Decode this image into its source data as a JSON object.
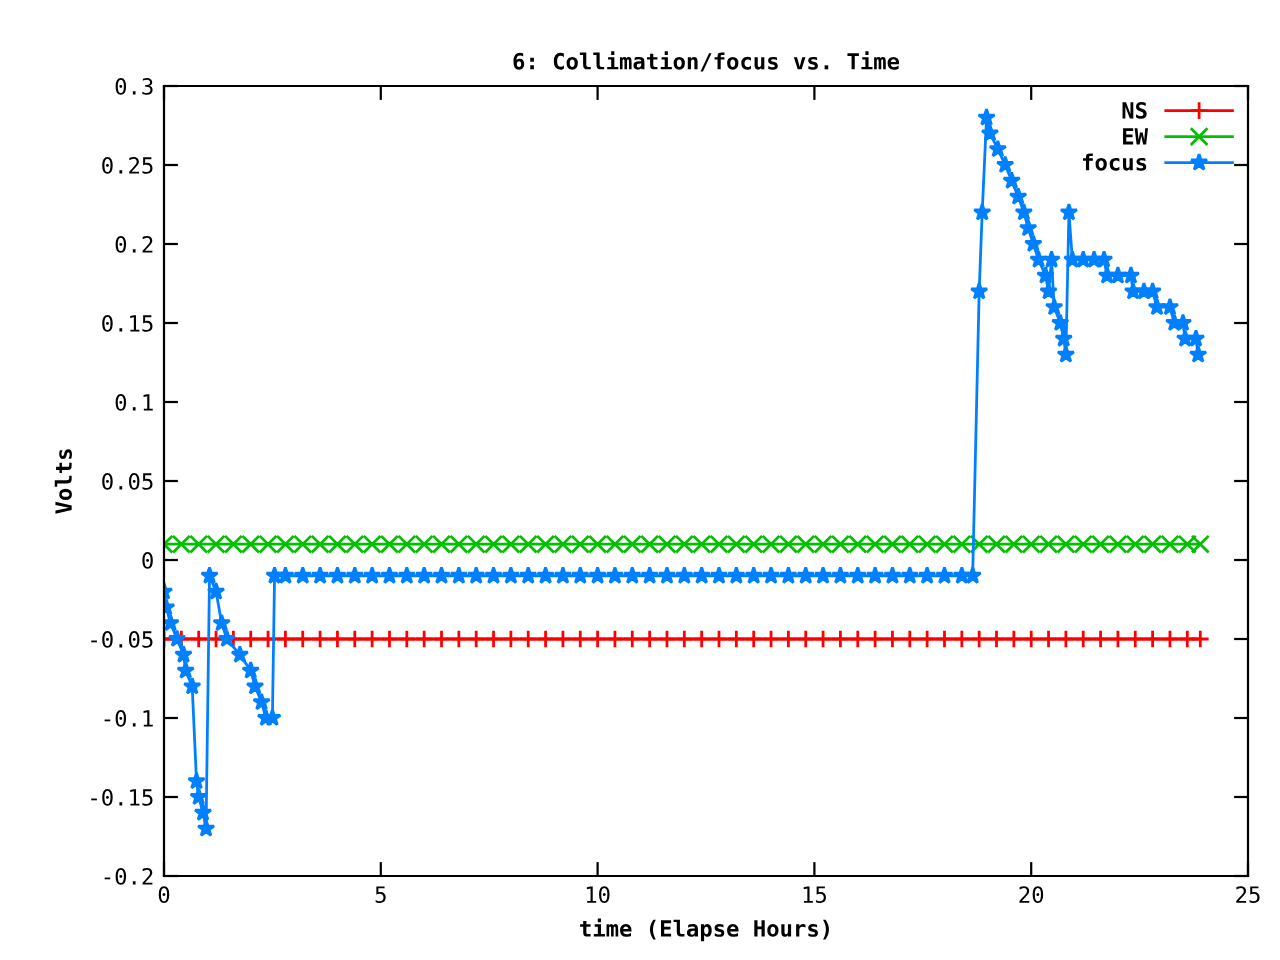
{
  "chart_data": {
    "type": "line",
    "title": "6: Collimation/focus vs. Time",
    "xlabel": "time (Elapse Hours)",
    "ylabel": "Volts",
    "xlim": [
      0,
      25
    ],
    "ylim": [
      -0.2,
      0.3
    ],
    "xticks": [
      0,
      5,
      10,
      15,
      20,
      25
    ],
    "yticks": [
      -0.2,
      -0.15,
      -0.1,
      -0.05,
      0,
      0.05,
      0.1,
      0.15,
      0.2,
      0.25,
      0.3
    ],
    "grid": false,
    "legend": "top right",
    "line_style": "solid",
    "series": [
      {
        "name": "NS",
        "color": "#ff0000",
        "marker": "cross",
        "x": [
          0,
          0.4,
          0.8,
          1.2,
          1.6,
          2.0,
          2.4,
          2.8,
          3.2,
          3.6,
          4.0,
          4.4,
          4.8,
          5.2,
          5.6,
          6.0,
          6.4,
          6.8,
          7.2,
          7.6,
          8.0,
          8.4,
          8.8,
          9.2,
          9.6,
          10.0,
          10.4,
          10.8,
          11.2,
          11.6,
          12.0,
          12.4,
          12.8,
          13.2,
          13.6,
          14.0,
          14.4,
          14.8,
          15.2,
          15.6,
          16.0,
          16.4,
          16.8,
          17.2,
          17.6,
          18.0,
          18.4,
          18.8,
          19.2,
          19.6,
          20.0,
          20.4,
          20.8,
          21.2,
          21.6,
          22.0,
          22.4,
          22.8,
          23.2,
          23.6,
          23.9
        ],
        "values": [
          -0.05,
          -0.05,
          -0.05,
          -0.05,
          -0.05,
          -0.05,
          -0.05,
          -0.05,
          -0.05,
          -0.05,
          -0.05,
          -0.05,
          -0.05,
          -0.05,
          -0.05,
          -0.05,
          -0.05,
          -0.05,
          -0.05,
          -0.05,
          -0.05,
          -0.05,
          -0.05,
          -0.05,
          -0.05,
          -0.05,
          -0.05,
          -0.05,
          -0.05,
          -0.05,
          -0.05,
          -0.05,
          -0.05,
          -0.05,
          -0.05,
          -0.05,
          -0.05,
          -0.05,
          -0.05,
          -0.05,
          -0.05,
          -0.05,
          -0.05,
          -0.05,
          -0.05,
          -0.05,
          -0.05,
          -0.05,
          -0.05,
          -0.05,
          -0.05,
          -0.05,
          -0.05,
          -0.05,
          -0.05,
          -0.05,
          -0.05,
          -0.05,
          -0.05,
          -0.05,
          -0.05
        ]
      },
      {
        "name": "EW",
        "color": "#00c000",
        "marker": "x",
        "x": [
          0,
          0.4,
          0.8,
          1.2,
          1.6,
          2.0,
          2.4,
          2.8,
          3.2,
          3.6,
          4.0,
          4.4,
          4.8,
          5.2,
          5.6,
          6.0,
          6.4,
          6.8,
          7.2,
          7.6,
          8.0,
          8.4,
          8.8,
          9.2,
          9.6,
          10.0,
          10.4,
          10.8,
          11.2,
          11.6,
          12.0,
          12.4,
          12.8,
          13.2,
          13.6,
          14.0,
          14.4,
          14.8,
          15.2,
          15.6,
          16.0,
          16.4,
          16.8,
          17.2,
          17.6,
          18.0,
          18.4,
          18.8,
          19.2,
          19.6,
          20.0,
          20.4,
          20.8,
          21.2,
          21.6,
          22.0,
          22.4,
          22.8,
          23.2,
          23.6,
          23.9
        ],
        "values": [
          0.01,
          0.01,
          0.01,
          0.01,
          0.01,
          0.01,
          0.01,
          0.01,
          0.01,
          0.01,
          0.01,
          0.01,
          0.01,
          0.01,
          0.01,
          0.01,
          0.01,
          0.01,
          0.01,
          0.01,
          0.01,
          0.01,
          0.01,
          0.01,
          0.01,
          0.01,
          0.01,
          0.01,
          0.01,
          0.01,
          0.01,
          0.01,
          0.01,
          0.01,
          0.01,
          0.01,
          0.01,
          0.01,
          0.01,
          0.01,
          0.01,
          0.01,
          0.01,
          0.01,
          0.01,
          0.01,
          0.01,
          0.01,
          0.01,
          0.01,
          0.01,
          0.01,
          0.01,
          0.01,
          0.01,
          0.01,
          0.01,
          0.01,
          0.01,
          0.01,
          0.01
        ]
      },
      {
        "name": "focus",
        "color": "#0080ff",
        "marker": "star",
        "x": [
          0,
          0.05,
          0.15,
          0.3,
          0.45,
          0.5,
          0.65,
          0.75,
          0.8,
          0.9,
          0.97,
          1.05,
          1.2,
          1.33,
          1.45,
          1.75,
          2.0,
          2.1,
          2.25,
          2.35,
          2.5,
          2.55,
          2.8,
          3.2,
          3.6,
          4.0,
          4.4,
          4.8,
          5.2,
          5.6,
          6.0,
          6.4,
          6.8,
          7.2,
          7.6,
          8.0,
          8.4,
          8.8,
          9.2,
          9.6,
          10.0,
          10.4,
          10.8,
          11.2,
          11.6,
          12.0,
          12.4,
          12.8,
          13.2,
          13.6,
          14.0,
          14.4,
          14.8,
          15.2,
          15.6,
          16.0,
          16.4,
          16.8,
          17.2,
          17.6,
          18.0,
          18.4,
          18.65,
          18.8,
          18.87,
          18.97,
          19.05,
          19.23,
          19.4,
          19.55,
          19.7,
          19.83,
          19.93,
          20.05,
          20.17,
          20.33,
          20.4,
          20.47,
          20.53,
          20.67,
          20.75,
          20.8,
          20.87,
          20.95,
          21.2,
          21.45,
          21.68,
          21.75,
          22.0,
          22.3,
          22.35,
          22.6,
          22.8,
          22.9,
          23.2,
          23.3,
          23.5,
          23.55,
          23.8,
          23.85
        ],
        "values": [
          -0.02,
          -0.03,
          -0.04,
          -0.05,
          -0.06,
          -0.07,
          -0.08,
          -0.14,
          -0.15,
          -0.16,
          -0.17,
          -0.01,
          -0.02,
          -0.04,
          -0.05,
          -0.06,
          -0.07,
          -0.08,
          -0.09,
          -0.1,
          -0.1,
          -0.01,
          -0.01,
          -0.01,
          -0.01,
          -0.01,
          -0.01,
          -0.01,
          -0.01,
          -0.01,
          -0.01,
          -0.01,
          -0.01,
          -0.01,
          -0.01,
          -0.01,
          -0.01,
          -0.01,
          -0.01,
          -0.01,
          -0.01,
          -0.01,
          -0.01,
          -0.01,
          -0.01,
          -0.01,
          -0.01,
          -0.01,
          -0.01,
          -0.01,
          -0.01,
          -0.01,
          -0.01,
          -0.01,
          -0.01,
          -0.01,
          -0.01,
          -0.01,
          -0.01,
          -0.01,
          -0.01,
          -0.01,
          -0.01,
          0.17,
          0.22,
          0.28,
          0.27,
          0.26,
          0.25,
          0.24,
          0.23,
          0.22,
          0.21,
          0.2,
          0.19,
          0.18,
          0.17,
          0.19,
          0.16,
          0.15,
          0.14,
          0.13,
          0.22,
          0.19,
          0.19,
          0.19,
          0.19,
          0.18,
          0.18,
          0.18,
          0.17,
          0.17,
          0.17,
          0.16,
          0.16,
          0.15,
          0.15,
          0.14,
          0.14,
          0.13
        ]
      }
    ]
  }
}
